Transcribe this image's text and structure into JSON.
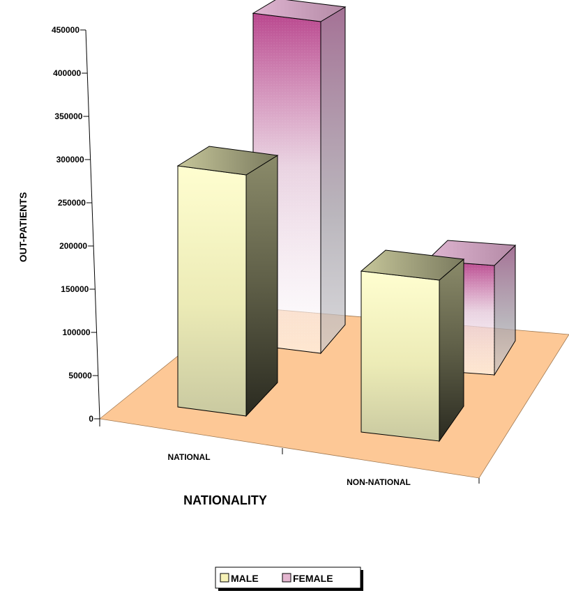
{
  "chart_data": {
    "type": "bar",
    "categories": [
      "NATIONAL",
      "NON-NATIONAL"
    ],
    "series": [
      {
        "name": "MALE",
        "values": [
          288000,
          185000
        ]
      },
      {
        "name": "FEMALE",
        "values": [
          446000,
          182000
        ]
      }
    ],
    "xlabel": "NATIONALITY",
    "ylabel": "OUT-PATIENTS",
    "ylim": [
      0,
      450000
    ],
    "yticks": [
      0,
      50000,
      100000,
      150000,
      200000,
      250000,
      300000,
      350000,
      400000,
      450000
    ],
    "ytick_labels": [
      "0",
      "50000",
      "100000",
      "150000",
      "200000",
      "250000",
      "300000",
      "350000",
      "400000",
      "450000"
    ],
    "grid": false,
    "legend_position": "bottom",
    "three_d": true,
    "colors": {
      "male_front": "#fdf7c2",
      "male_side": "#4a4a36",
      "male_top": "#a4a47c",
      "female_front": "#c04e92",
      "female_side": "#8c7a88",
      "female_top": "#cfa4c0",
      "floor": "#fdc896"
    }
  }
}
